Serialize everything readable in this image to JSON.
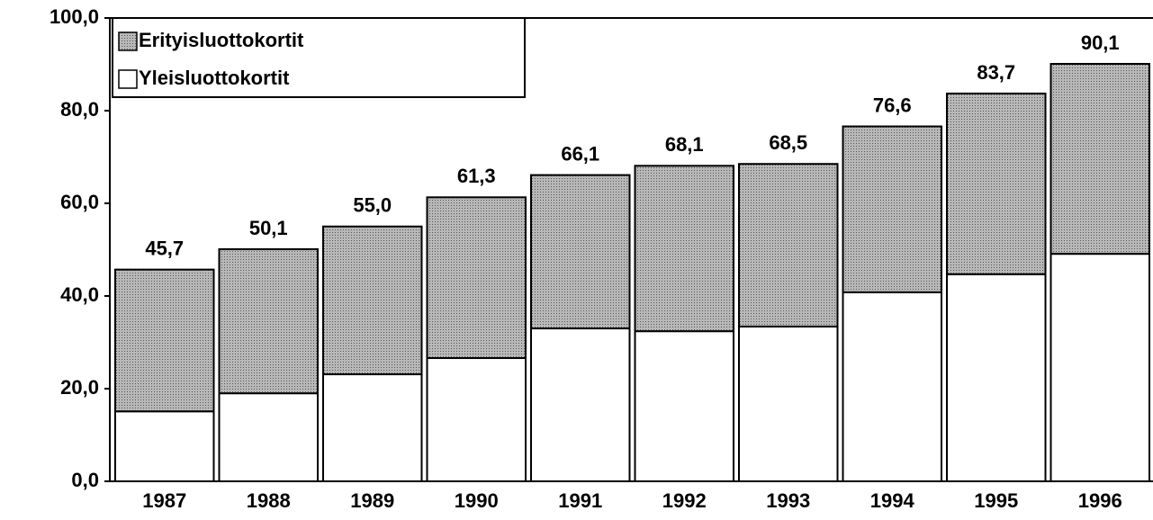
{
  "chart_data": {
    "type": "stacked_bar",
    "categories": [
      "1987",
      "1988",
      "1989",
      "1990",
      "1991",
      "1992",
      "1993",
      "1994",
      "1995",
      "1996"
    ],
    "series": [
      {
        "name": "Yleisluottokortit",
        "color": "#ffffff",
        "values": [
          15.1,
          19.0,
          23.1,
          26.6,
          33.0,
          32.4,
          33.4,
          40.8,
          44.7,
          49.1
        ]
      },
      {
        "name": "Erityisluottokortit",
        "color": "#ababab",
        "values": [
          30.6,
          31.1,
          31.9,
          34.7,
          33.1,
          35.7,
          35.1,
          35.8,
          39.0,
          41.0
        ]
      }
    ],
    "totals": [
      45.7,
      50.1,
      55.0,
      61.3,
      66.1,
      68.1,
      68.5,
      76.6,
      83.7,
      90.1
    ],
    "total_labels": [
      "45,7",
      "50,1",
      "55,0",
      "61,3",
      "66,1",
      "68,1",
      "68,5",
      "76,6",
      "83,7",
      "90,1"
    ],
    "ylim": [
      0,
      100
    ],
    "yticks": [
      {
        "value": 0,
        "label": "0,0"
      },
      {
        "value": 20,
        "label": "20,0"
      },
      {
        "value": 40,
        "label": "40,0"
      },
      {
        "value": 60,
        "label": "60,0"
      },
      {
        "value": 80,
        "label": "80,0"
      },
      {
        "value": 100,
        "label": "100,0"
      }
    ],
    "legend": "upper left"
  }
}
